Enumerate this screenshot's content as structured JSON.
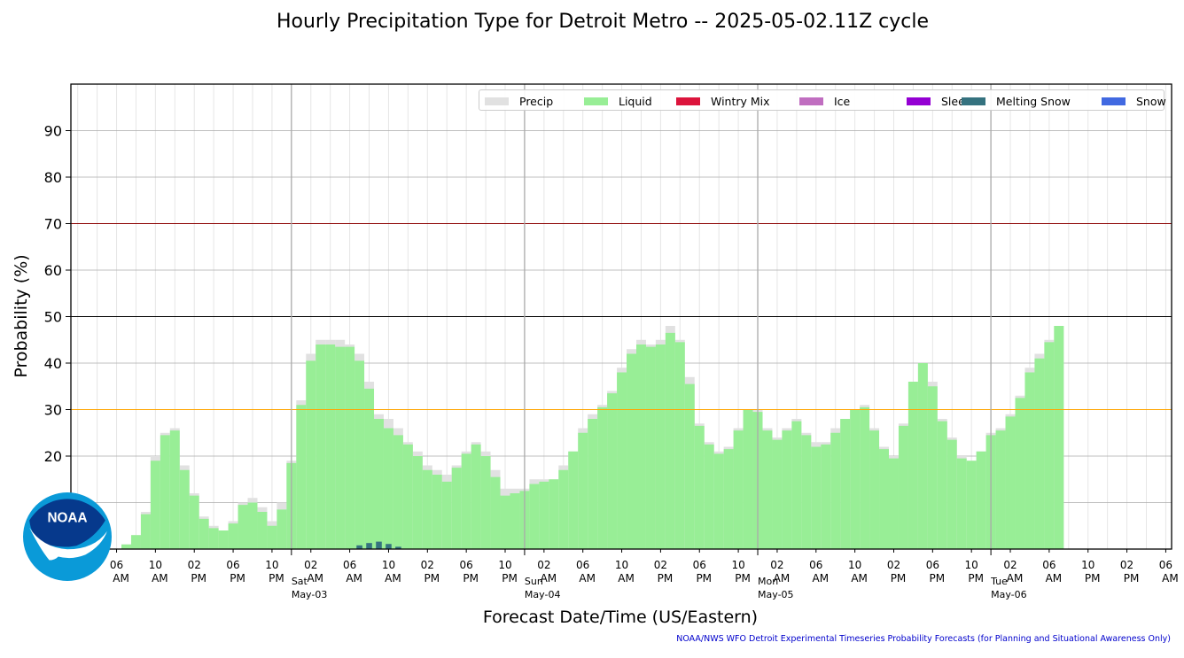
{
  "title": "Hourly Precipitation Type for Detroit Metro -- 2025-05-02.11Z cycle",
  "footer": "NOAA/NWS WFO Detroit Experimental Timeseries Probability Forecasts (for Planning and Situational Awareness Only)",
  "logo_text": "NOAA",
  "legend": [
    {
      "label": "Precip",
      "color": "#e1e1e1"
    },
    {
      "label": "Liquid",
      "color": "#98ee96"
    },
    {
      "label": "Wintry Mix",
      "color": "#dc143c"
    },
    {
      "label": "Ice",
      "color": "#c06ec0"
    },
    {
      "label": "Sleet",
      "color": "#9400d3"
    },
    {
      "label": "Melting Snow",
      "color": "#35727f"
    },
    {
      "label": "Snow",
      "color": "#4169e1"
    }
  ],
  "chart_data": {
    "type": "bar",
    "title": "Hourly Precipitation Type for Detroit Metro -- 2025-05-02.11Z cycle",
    "xlabel": "Forecast Date/Time (US/Eastern)",
    "ylabel": "Probability (%)",
    "ylim": [
      0,
      100
    ],
    "yticks": [
      20,
      30,
      40,
      50,
      60,
      70,
      80,
      90
    ],
    "xlim_hours": [
      -22.7,
      90.6
    ],
    "x_ticks": [
      {
        "hour": -18,
        "time": "06",
        "ampm": "AM"
      },
      {
        "hour": -14,
        "time": "10",
        "ampm": "AM"
      },
      {
        "hour": -10,
        "time": "02",
        "ampm": "PM"
      },
      {
        "hour": -6,
        "time": "06",
        "ampm": "PM"
      },
      {
        "hour": -2,
        "time": "10",
        "ampm": "PM"
      },
      {
        "hour": 2,
        "time": "02",
        "ampm": "AM"
      },
      {
        "hour": 6,
        "time": "06",
        "ampm": "AM"
      },
      {
        "hour": 10,
        "time": "10",
        "ampm": "AM"
      },
      {
        "hour": 14,
        "time": "02",
        "ampm": "PM"
      },
      {
        "hour": 18,
        "time": "06",
        "ampm": "PM"
      },
      {
        "hour": 22,
        "time": "10",
        "ampm": "PM"
      },
      {
        "hour": 26,
        "time": "02",
        "ampm": "AM"
      },
      {
        "hour": 30,
        "time": "06",
        "ampm": "AM"
      },
      {
        "hour": 34,
        "time": "10",
        "ampm": "AM"
      },
      {
        "hour": 38,
        "time": "02",
        "ampm": "PM"
      },
      {
        "hour": 42,
        "time": "06",
        "ampm": "PM"
      },
      {
        "hour": 46,
        "time": "10",
        "ampm": "PM"
      },
      {
        "hour": 50,
        "time": "02",
        "ampm": "AM"
      },
      {
        "hour": 54,
        "time": "06",
        "ampm": "AM"
      },
      {
        "hour": 58,
        "time": "10",
        "ampm": "AM"
      },
      {
        "hour": 62,
        "time": "02",
        "ampm": "PM"
      },
      {
        "hour": 66,
        "time": "06",
        "ampm": "PM"
      },
      {
        "hour": 70,
        "time": "10",
        "ampm": "PM"
      },
      {
        "hour": 74,
        "time": "02",
        "ampm": "AM"
      },
      {
        "hour": 78,
        "time": "06",
        "ampm": "AM"
      },
      {
        "hour": 82,
        "time": "10",
        "ampm": "PM"
      },
      {
        "hour": 86,
        "time": "02",
        "ampm": "PM"
      },
      {
        "hour": 90,
        "time": "06",
        "ampm": "AM"
      }
    ],
    "day_markers": [
      {
        "hour": 0,
        "day": "Sat",
        "date": "May-03"
      },
      {
        "hour": 24,
        "day": "Sun",
        "date": "May-04"
      },
      {
        "hour": 48,
        "day": "Mon",
        "date": "May-05"
      },
      {
        "hour": 72,
        "day": "Tue",
        "date": "May-06"
      }
    ],
    "reference_lines": [
      {
        "y": 30,
        "color": "#ffa500"
      },
      {
        "y": 50,
        "color": "#000000"
      },
      {
        "y": 70,
        "color": "#8b0000"
      }
    ],
    "start_hour": -17,
    "series": [
      {
        "name": "Precip",
        "color": "#e1e1e1",
        "values": [
          1,
          3,
          8,
          20,
          25,
          26,
          18,
          12,
          7,
          5,
          4,
          6,
          10,
          11,
          9,
          6,
          10,
          19,
          32,
          42,
          45,
          45,
          45,
          44,
          42,
          36,
          29,
          28,
          26,
          23,
          21,
          18,
          17,
          16,
          18,
          21,
          23,
          21,
          17,
          13,
          13,
          13,
          15,
          15,
          15,
          18,
          21,
          26,
          29,
          31,
          34,
          39,
          43,
          45,
          44,
          45,
          48,
          45,
          37,
          27,
          23,
          21,
          22,
          26,
          30,
          30,
          26,
          24,
          26,
          28,
          25,
          23,
          23,
          26,
          28,
          30,
          31,
          26,
          22,
          20,
          27,
          36,
          40,
          36,
          28,
          24,
          20,
          19,
          21,
          25,
          26,
          29,
          33,
          39,
          42,
          45,
          48
        ]
      },
      {
        "name": "Liquid",
        "color": "#98ee96",
        "values": [
          1,
          3,
          7.5,
          19,
          24.5,
          25.5,
          17,
          11.5,
          6.5,
          4.5,
          4,
          5.5,
          9.5,
          10,
          8,
          5,
          8.5,
          18.5,
          31,
          40.5,
          44,
          44,
          43.5,
          43.5,
          40.5,
          34.5,
          28,
          26,
          24.5,
          22.5,
          20,
          17,
          16,
          14.5,
          17.5,
          20.5,
          22.5,
          20,
          15.5,
          11.5,
          12,
          12.5,
          14,
          14.5,
          15,
          17,
          21,
          25,
          28,
          30.5,
          33.5,
          38,
          42,
          44,
          43.5,
          44,
          46.5,
          44.5,
          35.5,
          26.5,
          22.5,
          20.5,
          21.5,
          25.5,
          30,
          29.5,
          25.5,
          23.5,
          25.5,
          27.5,
          24.5,
          22,
          22.5,
          25,
          28,
          30,
          30.5,
          25.5,
          21.5,
          19.5,
          26.5,
          36,
          40,
          35,
          27.5,
          23.5,
          19.5,
          19,
          21,
          24.5,
          25.5,
          28.5,
          32.5,
          38,
          41,
          44.5,
          48
        ]
      },
      {
        "name": "Wintry Mix",
        "color": "#dc143c",
        "values": []
      },
      {
        "name": "Ice",
        "color": "#c06ec0",
        "values": []
      },
      {
        "name": "Sleet",
        "color": "#9400d3",
        "values": []
      },
      {
        "name": "Melting Snow",
        "color": "#35727f",
        "bars": [
          {
            "hour": 7,
            "value": 0.8
          },
          {
            "hour": 8,
            "value": 1.3
          },
          {
            "hour": 9,
            "value": 1.6
          },
          {
            "hour": 10,
            "value": 1.1
          },
          {
            "hour": 11,
            "value": 0.5
          }
        ]
      },
      {
        "name": "Snow",
        "color": "#4169e1",
        "values": []
      }
    ]
  }
}
